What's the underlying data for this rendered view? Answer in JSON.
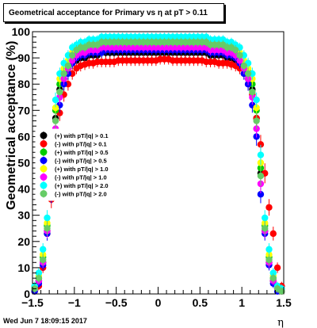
{
  "canvas_title": "Geometrical acceptance for Primary vs    η at pT > 0.11",
  "footer_timestamp": "Wed Jun  7 18:09:15 2017",
  "chart_data": {
    "type": "scatter",
    "title": "Geometrical acceptance for Primary vs    η at pT > 0.11",
    "xlabel": "η",
    "ylabel": "Geometrical acceptance (%)",
    "xlim": [
      -1.5,
      1.5
    ],
    "ylim": [
      0,
      100
    ],
    "xticks": [
      -1.5,
      -1,
      -0.5,
      0,
      0.5,
      1,
      1.5
    ],
    "xtick_labels": [
      "−1.5",
      "−1",
      "−0.5",
      "0",
      "0.5",
      "1",
      "1.5"
    ],
    "yticks": [
      0,
      10,
      20,
      30,
      40,
      50,
      60,
      70,
      80,
      90,
      100
    ],
    "ytick_labels": [
      "0",
      "10",
      "20",
      "30",
      "40",
      "50",
      "60",
      "70",
      "80",
      "90",
      "100"
    ],
    "grid": false,
    "legend_position": "middle-left",
    "x": [
      -1.475,
      -1.425,
      -1.375,
      -1.325,
      -1.275,
      -1.225,
      -1.175,
      -1.125,
      -1.075,
      -1.025,
      -0.975,
      -0.925,
      -0.875,
      -0.825,
      -0.775,
      -0.725,
      -0.675,
      -0.625,
      -0.575,
      -0.525,
      -0.475,
      -0.425,
      -0.375,
      -0.325,
      -0.275,
      -0.225,
      -0.175,
      -0.125,
      -0.075,
      -0.025,
      0.025,
      0.075,
      0.125,
      0.175,
      0.225,
      0.275,
      0.325,
      0.375,
      0.425,
      0.475,
      0.525,
      0.575,
      0.625,
      0.675,
      0.725,
      0.775,
      0.825,
      0.875,
      0.925,
      0.975,
      1.025,
      1.075,
      1.125,
      1.175,
      1.225,
      1.275,
      1.325,
      1.375,
      1.425,
      1.475
    ],
    "series": [
      {
        "name": "(+) with pT/|q| > 0.1",
        "color": "#000000",
        "values": [
          2,
          5,
          12,
          24,
          46,
          67,
          78,
          82,
          86,
          88,
          89,
          90,
          90,
          91,
          91,
          91,
          92,
          92,
          92,
          92,
          92,
          92,
          92,
          92,
          92,
          92,
          92,
          92,
          92,
          92,
          92,
          92,
          92,
          92,
          92,
          92,
          92,
          92,
          92,
          92,
          92,
          92,
          91,
          91,
          91,
          91,
          90,
          90,
          89,
          88,
          86,
          82,
          78,
          67,
          46,
          24,
          12,
          5,
          2,
          1
        ]
      },
      {
        "name": "(-) with pT/|q| > 0.1",
        "color": "#ff0000",
        "values": [
          1,
          3,
          10,
          23,
          36,
          57,
          69,
          76,
          80,
          84,
          86,
          87,
          87.5,
          88,
          88,
          88.5,
          88.5,
          88.5,
          88.5,
          88.5,
          89,
          89,
          89,
          89,
          89,
          89,
          89,
          89,
          89,
          89,
          89.5,
          89.5,
          89.5,
          89,
          89,
          89,
          89,
          89,
          89,
          89,
          89,
          88.5,
          88.5,
          88.5,
          88,
          88,
          88,
          87.5,
          87,
          86,
          84,
          80,
          76,
          67,
          57,
          46,
          33,
          23,
          10,
          3
        ]
      },
      {
        "name": "(+) with pT/|q| > 0.5",
        "color": "#00cc00",
        "values": [
          2,
          6,
          14,
          26,
          48,
          70,
          80,
          85,
          88,
          91,
          92,
          93,
          93,
          94,
          94,
          94,
          94,
          95,
          95,
          95,
          95,
          95,
          95,
          95,
          95,
          95,
          95,
          95,
          95,
          95,
          95,
          95,
          95,
          95,
          95,
          95,
          95,
          95,
          95,
          95,
          95,
          95,
          94,
          94,
          94,
          94,
          93,
          93,
          92,
          91,
          88,
          85,
          80,
          70,
          48,
          26,
          14,
          6,
          2,
          1
        ]
      },
      {
        "name": "(-) with pT/|q| > 0.5",
        "color": "#0000ff",
        "values": [
          1,
          4,
          11,
          23,
          38,
          60,
          72,
          80,
          84,
          88,
          90,
          91,
          91,
          92,
          92,
          92,
          92,
          93,
          93,
          93,
          93,
          93,
          93,
          93,
          93,
          93,
          93,
          93,
          93,
          93,
          93,
          93,
          93,
          93,
          93,
          93,
          93,
          93,
          93,
          93,
          93,
          93,
          92,
          92,
          92,
          92,
          91,
          91,
          90,
          88,
          84,
          80,
          72,
          60,
          38,
          23,
          11,
          4,
          1,
          1
        ]
      },
      {
        "name": "(+) with pT/|q| > 1.0",
        "color": "#ffff00",
        "values": [
          3,
          7,
          15,
          27,
          50,
          71,
          82,
          86,
          89,
          92,
          93,
          94,
          94,
          95,
          95,
          95,
          96,
          96,
          96,
          96,
          96,
          96,
          96,
          96,
          96,
          96,
          96,
          96,
          96,
          96,
          96,
          96,
          96,
          96,
          96,
          96,
          96,
          96,
          96,
          96,
          96,
          96,
          95,
          95,
          95,
          95,
          94,
          94,
          93,
          92,
          89,
          86,
          82,
          71,
          50,
          27,
          15,
          7,
          3,
          1
        ]
      },
      {
        "name": "(-) with pT/|q| > 1.0",
        "color": "#ff00ff",
        "values": [
          2,
          5,
          12,
          24,
          42,
          63,
          75,
          82,
          86,
          89,
          91,
          92,
          92,
          93,
          93,
          93,
          94,
          94,
          94,
          94,
          94,
          94,
          94,
          94,
          94,
          94,
          94,
          94,
          94,
          94,
          94,
          94,
          94,
          94,
          94,
          94,
          94,
          94,
          94,
          94,
          94,
          94,
          93,
          93,
          93,
          93,
          92,
          92,
          91,
          89,
          86,
          82,
          75,
          63,
          42,
          24,
          12,
          5,
          2,
          1
        ]
      },
      {
        "name": "(+) with pT/|q| > 2.0",
        "color": "#00ffff",
        "values": [
          3,
          8,
          17,
          29,
          53,
          74,
          84,
          88,
          91,
          94,
          95,
          96,
          96,
          97,
          97,
          97,
          98,
          98,
          98,
          98,
          98,
          98,
          98,
          98,
          98,
          98,
          98,
          98,
          98,
          98,
          98,
          98,
          98,
          98,
          98,
          98,
          98,
          98,
          98,
          98,
          98,
          98,
          97,
          97,
          97,
          97,
          96,
          96,
          95,
          94,
          91,
          88,
          84,
          74,
          53,
          29,
          17,
          8,
          3,
          2
        ]
      },
      {
        "name": "(-) with pT/|q| > 2.0",
        "color": "#66cc66",
        "values": [
          2,
          6,
          13,
          25,
          45,
          66,
          77,
          84,
          87,
          91,
          93,
          94,
          94,
          95,
          95,
          95,
          96,
          96,
          96,
          96,
          96,
          96,
          96,
          96,
          96,
          96,
          96,
          96,
          96,
          96,
          96,
          96,
          96,
          96,
          96,
          96,
          96,
          96,
          96,
          96,
          96,
          96,
          95,
          95,
          95,
          95,
          94,
          94,
          93,
          91,
          87,
          84,
          77,
          66,
          45,
          25,
          13,
          6,
          2,
          1
        ]
      }
    ]
  }
}
